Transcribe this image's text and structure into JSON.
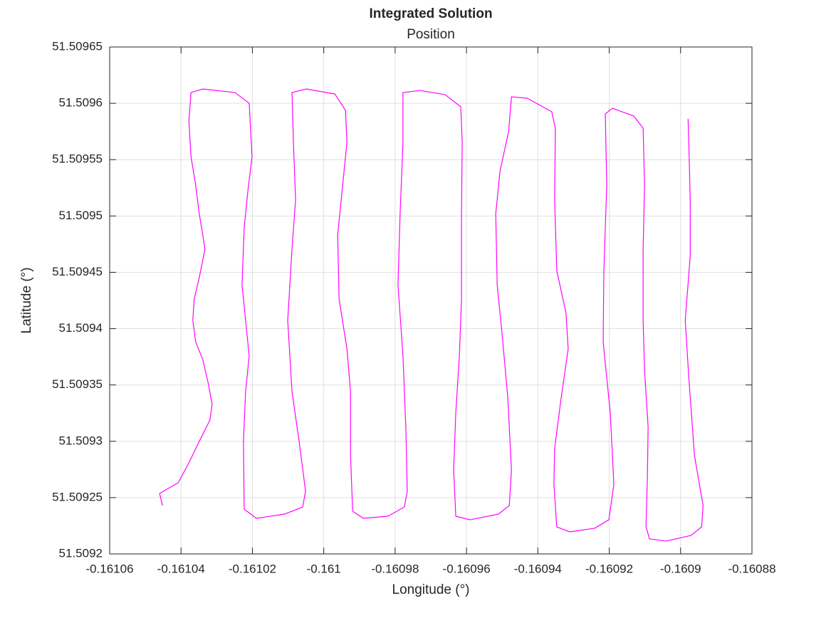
{
  "chart_data": {
    "type": "line",
    "title": "Integrated Solution",
    "subtitle": "Position",
    "x_label": "Longitude (°)",
    "y_label": "Latitude (°)",
    "color": "#ff00ff",
    "grid": true,
    "xlim": [
      -0.16106,
      -0.16088
    ],
    "ylim": [
      51.5092,
      51.50965
    ],
    "xticks": [
      -0.16106,
      -0.16104,
      -0.16102,
      -0.161,
      -0.16098,
      -0.16096,
      -0.16094,
      -0.16092,
      -0.1609,
      -0.16088
    ],
    "yticks": [
      51.5092,
      51.50925,
      51.5093,
      51.50935,
      51.5094,
      51.50945,
      51.5095,
      51.50955,
      51.5096,
      51.50965
    ],
    "x": [
      -0.1610452,
      -0.161046,
      -0.1610408,
      -0.1610378,
      -0.1610349,
      -0.1610319,
      -0.1610313,
      -0.1610323,
      -0.1610339,
      -0.1610359,
      -0.1610367,
      -0.1610363,
      -0.1610349,
      -0.1610333,
      -0.1610339,
      -0.1610349,
      -0.1610359,
      -0.1610372,
      -0.1610378,
      -0.1610372,
      -0.1610339,
      -0.1610249,
      -0.1610209,
      -0.1610201,
      -0.1610213,
      -0.1610223,
      -0.1610229,
      -0.1610215,
      -0.1610209,
      -0.1610219,
      -0.1610225,
      -0.1610223,
      -0.1610189,
      -0.1610109,
      -0.1610059,
      -0.1610051,
      -0.1610069,
      -0.1610089,
      -0.1610101,
      -0.1610089,
      -0.1610079,
      -0.1610085,
      -0.1610089,
      -0.1610049,
      -0.1609969,
      -0.1609939,
      -0.1609935,
      -0.1609949,
      -0.1609961,
      -0.1609957,
      -0.1609935,
      -0.1609925,
      -0.1609925,
      -0.1609919,
      -0.1609889,
      -0.160982,
      -0.1609774,
      -0.1609766,
      -0.160977,
      -0.1609778,
      -0.1609792,
      -0.1609786,
      -0.1609778,
      -0.1609778,
      -0.160973,
      -0.160966,
      -0.1609616,
      -0.1609612,
      -0.1609614,
      -0.1609614,
      -0.160962,
      -0.160963,
      -0.1609636,
      -0.160963,
      -0.160959,
      -0.160951,
      -0.160948,
      -0.1609474,
      -0.1609484,
      -0.16095,
      -0.1609514,
      -0.1609518,
      -0.1609506,
      -0.1609482,
      -0.1609474,
      -0.160943,
      -0.1609361,
      -0.1609351,
      -0.1609353,
      -0.1609347,
      -0.1609321,
      -0.1609315,
      -0.1609335,
      -0.1609353,
      -0.1609355,
      -0.1609347,
      -0.1609311,
      -0.1609241,
      -0.1609201,
      -0.1609187,
      -0.1609197,
      -0.1609217,
      -0.1609215,
      -0.1609207,
      -0.1609211,
      -0.1609191,
      -0.1609131,
      -0.1609105,
      -0.1609101,
      -0.1609105,
      -0.1609105,
      -0.1609101,
      -0.1609091,
      -0.1609093,
      -0.1609097,
      -0.1609087,
      -0.1609041,
      -0.1608971,
      -0.1608941,
      -0.1608937,
      -0.1608961,
      -0.1608977,
      -0.1608987,
      -0.1608973,
      -0.1608973,
      -0.1608977,
      -0.1608979
    ],
    "values": [
      51.509243,
      51.5092537,
      51.5092632,
      51.5092809,
      51.5092999,
      51.5093188,
      51.5093327,
      51.5093504,
      51.5093725,
      51.5093883,
      51.5094073,
      51.5094263,
      51.5094452,
      51.5094705,
      51.5094831,
      51.5095021,
      51.5095274,
      51.5095527,
      51.5095843,
      51.5096096,
      51.5096127,
      51.5096096,
      51.5096001,
      51.5095527,
      51.5095211,
      51.5094895,
      51.5094389,
      51.5093947,
      51.5093757,
      51.5093441,
      51.5092999,
      51.5092398,
      51.5092316,
      51.5092354,
      51.5092417,
      51.5092556,
      51.5092999,
      51.5093441,
      51.5094073,
      51.5094705,
      51.5095147,
      51.5095653,
      51.5096096,
      51.5096127,
      51.5096083,
      51.5095937,
      51.5095653,
      51.5095211,
      51.5094831,
      51.5094263,
      51.509382,
      51.5093441,
      51.5092872,
      51.5092379,
      51.5092316,
      51.5092335,
      51.5092417,
      51.5092556,
      51.5093125,
      51.5093757,
      51.5094389,
      51.5095021,
      51.5095653,
      51.5096096,
      51.5096114,
      51.5096077,
      51.5095969,
      51.5095653,
      51.5095021,
      51.5094263,
      51.5093757,
      51.5093251,
      51.5092746,
      51.5092335,
      51.5092303,
      51.5092354,
      51.509243,
      51.5092746,
      51.5093378,
      51.5093947,
      51.5094389,
      51.5095021,
      51.50954,
      51.5095748,
      51.5096058,
      51.5096045,
      51.5095925,
      51.5095779,
      51.5095147,
      51.5094515,
      51.5094136,
      51.509382,
      51.5093378,
      51.5092935,
      51.5092619,
      51.509224,
      51.5092196,
      51.5092228,
      51.5092303,
      51.5092619,
      51.5093251,
      51.5093883,
      51.5094515,
      51.5095274,
      51.5095906,
      51.5095956,
      51.5095887,
      51.5095779,
      51.5095274,
      51.5094705,
      51.5094073,
      51.5093631,
      51.5093125,
      51.5092683,
      51.509224,
      51.5092133,
      51.5092114,
      51.5092164,
      51.509224,
      51.509243,
      51.5092872,
      51.5093567,
      51.5094073,
      51.5094642,
      51.5095147,
      51.5095653,
      51.5095862
    ]
  }
}
